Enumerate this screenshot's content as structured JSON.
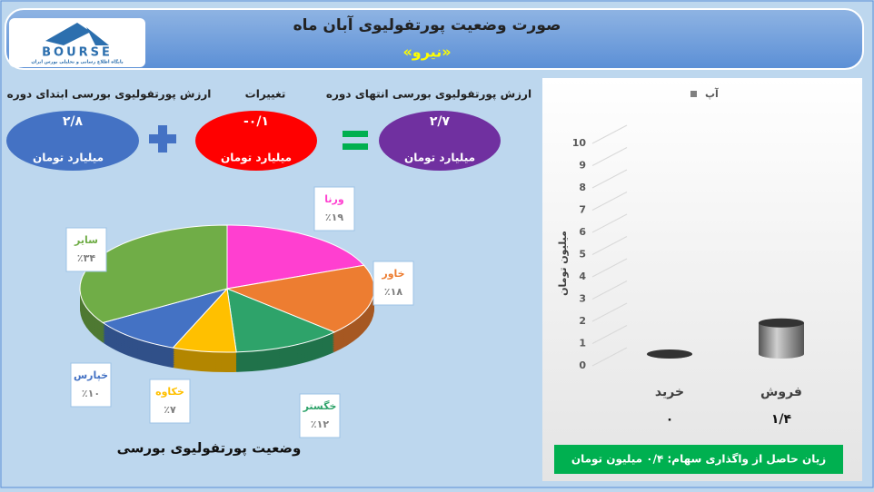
{
  "header": {
    "title": "صورت وضعیت پورتفولیوی آبان ماه",
    "subtitle": "«نیرو»",
    "logo_text": "BOURSE",
    "logo_caption": "پایگاه اطلاع رسانی و تحلیلی بورس ایران"
  },
  "summary": {
    "items": [
      {
        "label": "ارزش پورتفولیوی بورسی ابتدای دوره",
        "value": "۲/۸",
        "unit": "میلیارد تومان"
      },
      {
        "label": "تغییرات",
        "value": "-۰/۱",
        "unit": "میلیارد تومان"
      },
      {
        "label": "ارزش پورتفولیوی بورسی انتهای دوره",
        "value": "۲/۷",
        "unit": "میلیارد تومان"
      }
    ]
  },
  "note": "زیان حاصل از واگذاری سهام: ۰/۴ میلیون تومان",
  "chart_data": [
    {
      "type": "pie",
      "title": "وضعیت پورتفولیوی بورسی",
      "categories": [
        "ورنا",
        "خاور",
        "خگستر",
        "خکاوه",
        "خپارس",
        "سایر"
      ],
      "values": [
        19,
        18,
        12,
        7,
        10,
        34
      ],
      "value_labels": [
        "٪۱۹",
        "٪۱۸",
        "٪۱۲",
        "٪۷",
        "٪۱۰",
        "٪۳۴"
      ],
      "colors": [
        "#ff3fd0",
        "#ed7d31",
        "#2ea36a",
        "#ffc000",
        "#4472c4",
        "#70ad47"
      ]
    },
    {
      "type": "bar3d",
      "categories": [
        "خرید",
        "فروش"
      ],
      "values": [
        0,
        1.4
      ],
      "value_labels": [
        "۰",
        "۱/۴"
      ],
      "series_name": "آپ",
      "color": "#808080",
      "ylabel": "میلیون تومان",
      "ylim": [
        0,
        10
      ],
      "yticks": [
        0,
        1,
        2,
        3,
        4,
        5,
        6,
        7,
        8,
        9,
        10
      ]
    }
  ]
}
